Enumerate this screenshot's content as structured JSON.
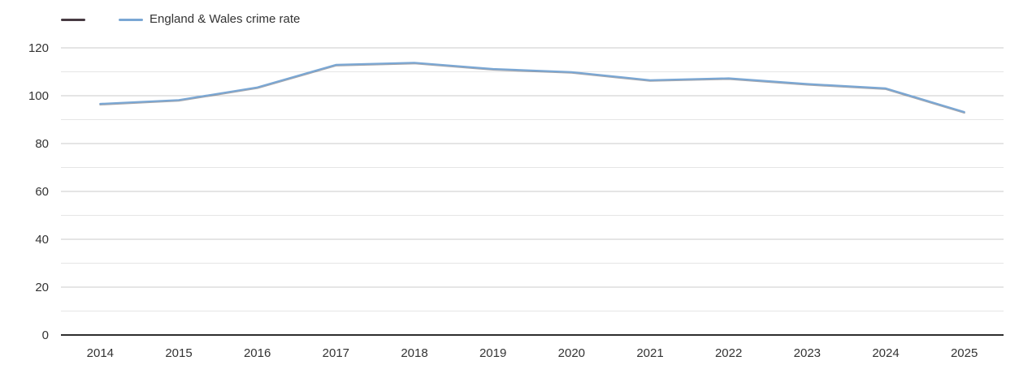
{
  "legend": {
    "items": [
      {
        "label": "",
        "color": "#473a42"
      },
      {
        "label": "England & Wales crime rate",
        "color": "#7aa7d4"
      }
    ]
  },
  "chart_data": {
    "type": "line",
    "title": "",
    "xlabel": "",
    "ylabel": "",
    "categories": [
      "2014",
      "2015",
      "2016",
      "2017",
      "2018",
      "2019",
      "2020",
      "2021",
      "2022",
      "2023",
      "2024",
      "2025"
    ],
    "series": [
      {
        "name": "",
        "color": "#473a42",
        "values": []
      },
      {
        "name": "England & Wales crime rate",
        "color": "#7aa7d4",
        "values": [
          96.6,
          98.2,
          103.5,
          112.9,
          113.8,
          111.2,
          109.9,
          106.5,
          107.3,
          104.9,
          103.1,
          93.2
        ]
      }
    ],
    "ylim": [
      0,
      120
    ],
    "ytick_step": 20,
    "minor_grid_step": 10,
    "grid": true,
    "legend_position": "top-left"
  },
  "colors": {
    "background": "#ffffff",
    "grid_major": "#cbcbcb",
    "grid_minor": "#e5e5e5",
    "axis_line": "#2e2e2e",
    "tick_text": "#333333",
    "line_shadow": "#4c4c55"
  }
}
